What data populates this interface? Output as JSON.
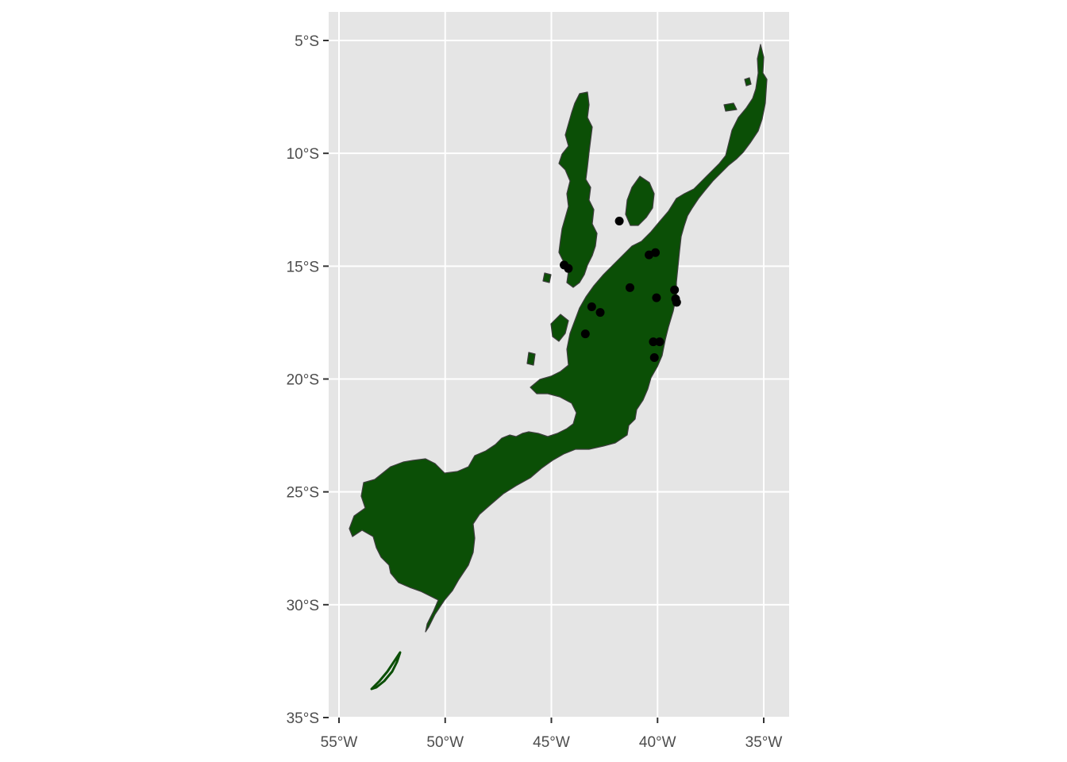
{
  "map": {
    "panel_background": "#e5e5e5",
    "grid_color": "#ffffff",
    "land_fill": "#0b4f06",
    "land_border": "#3d3d3d",
    "point_color": "#000000",
    "lon_range": [
      -55.5,
      -34.5
    ],
    "lat_range": [
      -35,
      -3.7
    ],
    "x_ticks": [
      {
        "value": -55,
        "label": "55°W"
      },
      {
        "value": -50,
        "label": "50°W"
      },
      {
        "value": -45,
        "label": "45°W"
      },
      {
        "value": -40,
        "label": "40°W"
      },
      {
        "value": -35,
        "label": "35°W"
      }
    ],
    "y_ticks": [
      {
        "value": -5,
        "label": "5°S"
      },
      {
        "value": -10,
        "label": "10°S"
      },
      {
        "value": -15,
        "label": "15°S"
      },
      {
        "value": -20,
        "label": "20°S"
      },
      {
        "value": -25,
        "label": "25°S"
      },
      {
        "value": -30,
        "label": "30°S"
      },
      {
        "value": -35,
        "label": "35°S"
      }
    ],
    "points": [
      {
        "lon": -41.8,
        "lat": -13.0
      },
      {
        "lon": -44.4,
        "lat": -14.95
      },
      {
        "lon": -44.2,
        "lat": -15.1
      },
      {
        "lon": -40.4,
        "lat": -14.5
      },
      {
        "lon": -40.1,
        "lat": -14.4
      },
      {
        "lon": -41.3,
        "lat": -15.95
      },
      {
        "lon": -40.05,
        "lat": -16.4
      },
      {
        "lon": -39.2,
        "lat": -16.05
      },
      {
        "lon": -39.15,
        "lat": -16.45
      },
      {
        "lon": -39.1,
        "lat": -16.6
      },
      {
        "lon": -43.1,
        "lat": -16.8
      },
      {
        "lon": -42.7,
        "lat": -17.05
      },
      {
        "lon": -43.4,
        "lat": -18.0
      },
      {
        "lon": -40.2,
        "lat": -18.35
      },
      {
        "lon": -39.9,
        "lat": -18.35
      },
      {
        "lon": -40.15,
        "lat": -19.05
      }
    ]
  }
}
